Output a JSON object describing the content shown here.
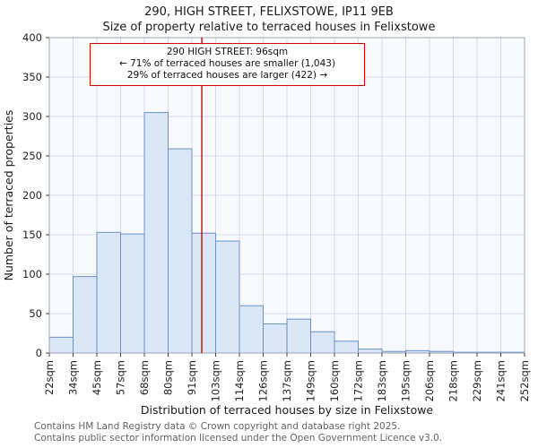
{
  "header": {
    "title": "290, HIGH STREET, FELIXSTOWE, IP11 9EB",
    "subtitle": "Size of property relative to terraced houses in Felixstowe"
  },
  "annotation": {
    "line1": "290 HIGH STREET: 96sqm",
    "line2": "← 71% of terraced houses are smaller (1,043)",
    "line3": "29% of terraced houses are larger (422) →"
  },
  "footer": {
    "line1": "Contains HM Land Registry data © Crown copyright and database right 2025.",
    "line2": "Contains public sector information licensed under the Open Government Licence v3.0."
  },
  "chart_data": {
    "type": "bar",
    "title": "290, HIGH STREET, FELIXSTOWE, IP11 9EB",
    "subtitle": "Size of property relative to terraced houses in Felixstowe",
    "xlabel": "Distribution of terraced houses by size in Felixstowe",
    "ylabel": "Number of terraced properties",
    "bin_edges": [
      22,
      34,
      45,
      57,
      68,
      80,
      91,
      103,
      114,
      126,
      137,
      149,
      160,
      172,
      183,
      195,
      206,
      218,
      229,
      241,
      252
    ],
    "x_tick_labels": [
      "22sqm",
      "34sqm",
      "45sqm",
      "57sqm",
      "68sqm",
      "80sqm",
      "91sqm",
      "103sqm",
      "114sqm",
      "126sqm",
      "137sqm",
      "149sqm",
      "160sqm",
      "172sqm",
      "183sqm",
      "195sqm",
      "206sqm",
      "218sqm",
      "229sqm",
      "241sqm",
      "252sqm"
    ],
    "values": [
      20,
      97,
      153,
      151,
      305,
      259,
      152,
      142,
      60,
      37,
      43,
      27,
      15,
      5,
      2,
      3,
      2,
      1,
      1,
      1
    ],
    "ylim": [
      0,
      400
    ],
    "y_ticks": [
      0,
      50,
      100,
      150,
      200,
      250,
      300,
      350,
      400
    ],
    "grid": true,
    "legend": "none",
    "marker_value": 96,
    "marker_label": "290 HIGH STREET: 96sqm",
    "colors": {
      "bar_fill": "#dbe6f6",
      "bar_stroke": "#6a93cb",
      "grid_color": "#d3dcee",
      "plot_bg": "#f7f9fd",
      "frame": "#9aa3b0",
      "tick_text": "#222222",
      "marker": "#aa0000"
    }
  }
}
